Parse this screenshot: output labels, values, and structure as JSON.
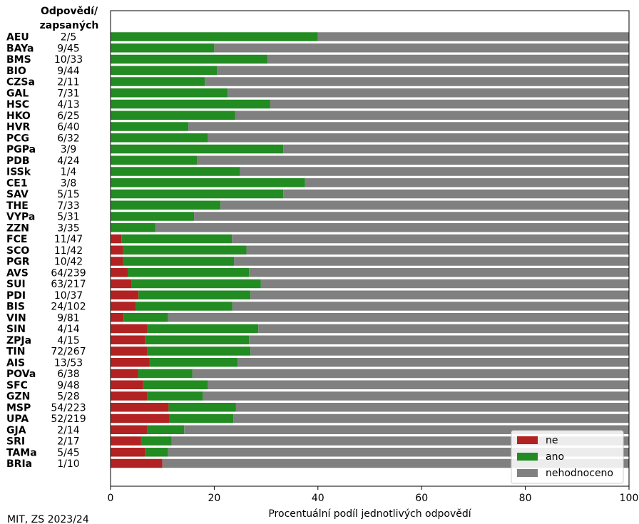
{
  "header": {
    "line1": "Odpovědí/",
    "line2": "zapsaných"
  },
  "footer": "MIT, ZS 2023/24",
  "colors": {
    "ne": "#b22222",
    "ano": "#228b22",
    "nehodnoceno": "#808080"
  },
  "chart_data": {
    "type": "bar",
    "orientation": "horizontal",
    "stacked": true,
    "xlabel": "Procentuální podíl jednotlivých odpovědí",
    "xlim": [
      0,
      100
    ],
    "xticks": [
      0,
      20,
      40,
      60,
      80,
      100
    ],
    "legend": {
      "placement": "bottom-right",
      "entries": [
        "ne",
        "ano",
        "nehodnoceno"
      ]
    },
    "rows": [
      {
        "code": "AEU",
        "ratio": "2/5",
        "ne": 0,
        "ano": 40
      },
      {
        "code": "BAYa",
        "ratio": "9/45",
        "ne": 0,
        "ano": 20
      },
      {
        "code": "BMS",
        "ratio": "10/33",
        "ne": 0,
        "ano": 30.3
      },
      {
        "code": "BIO",
        "ratio": "9/44",
        "ne": 0,
        "ano": 20.5
      },
      {
        "code": "CZSa",
        "ratio": "2/11",
        "ne": 0,
        "ano": 18.2
      },
      {
        "code": "GAL",
        "ratio": "7/31",
        "ne": 0,
        "ano": 22.6
      },
      {
        "code": "HSC",
        "ratio": "4/13",
        "ne": 0,
        "ano": 30.8
      },
      {
        "code": "HKO",
        "ratio": "6/25",
        "ne": 0,
        "ano": 24
      },
      {
        "code": "HVR",
        "ratio": "6/40",
        "ne": 0,
        "ano": 15
      },
      {
        "code": "PCG",
        "ratio": "6/32",
        "ne": 0,
        "ano": 18.8
      },
      {
        "code": "PGPa",
        "ratio": "3/9",
        "ne": 0,
        "ano": 33.3
      },
      {
        "code": "PDB",
        "ratio": "4/24",
        "ne": 0,
        "ano": 16.7
      },
      {
        "code": "ISSk",
        "ratio": "1/4",
        "ne": 0,
        "ano": 25
      },
      {
        "code": "CE1",
        "ratio": "3/8",
        "ne": 0,
        "ano": 37.5
      },
      {
        "code": "SAV",
        "ratio": "5/15",
        "ne": 0,
        "ano": 33.3
      },
      {
        "code": "THE",
        "ratio": "7/33",
        "ne": 0,
        "ano": 21.2
      },
      {
        "code": "VYPa",
        "ratio": "5/31",
        "ne": 0,
        "ano": 16.1
      },
      {
        "code": "ZZN",
        "ratio": "3/35",
        "ne": 0,
        "ano": 8.6
      },
      {
        "code": "FCE",
        "ratio": "11/47",
        "ne": 2.1,
        "ano": 21.3
      },
      {
        "code": "SCO",
        "ratio": "11/42",
        "ne": 2.4,
        "ano": 23.8
      },
      {
        "code": "PGR",
        "ratio": "10/42",
        "ne": 2.4,
        "ano": 21.4
      },
      {
        "code": "AVS",
        "ratio": "64/239",
        "ne": 3.3,
        "ano": 23.4
      },
      {
        "code": "SUI",
        "ratio": "63/217",
        "ne": 4.1,
        "ano": 24.9
      },
      {
        "code": "PDI",
        "ratio": "10/37",
        "ne": 5.4,
        "ano": 21.6
      },
      {
        "code": "BIS",
        "ratio": "24/102",
        "ne": 4.9,
        "ano": 18.6
      },
      {
        "code": "VIN",
        "ratio": "9/81",
        "ne": 2.5,
        "ano": 8.6
      },
      {
        "code": "SIN",
        "ratio": "4/14",
        "ne": 7.1,
        "ano": 21.4
      },
      {
        "code": "ZPJa",
        "ratio": "4/15",
        "ne": 6.7,
        "ano": 20
      },
      {
        "code": "TIN",
        "ratio": "72/267",
        "ne": 7.1,
        "ano": 19.9
      },
      {
        "code": "AIS",
        "ratio": "13/53",
        "ne": 7.5,
        "ano": 17
      },
      {
        "code": "POVa",
        "ratio": "6/38",
        "ne": 5.3,
        "ano": 10.5
      },
      {
        "code": "SFC",
        "ratio": "9/48",
        "ne": 6.3,
        "ano": 12.5
      },
      {
        "code": "GZN",
        "ratio": "5/28",
        "ne": 7.1,
        "ano": 10.7
      },
      {
        "code": "MSP",
        "ratio": "54/223",
        "ne": 11.2,
        "ano": 13
      },
      {
        "code": "UPA",
        "ratio": "52/219",
        "ne": 11.4,
        "ano": 12.3
      },
      {
        "code": "GJA",
        "ratio": "2/14",
        "ne": 7.1,
        "ano": 7.1
      },
      {
        "code": "SRI",
        "ratio": "2/17",
        "ne": 5.9,
        "ano": 5.9
      },
      {
        "code": "TAMa",
        "ratio": "5/45",
        "ne": 6.7,
        "ano": 4.4
      },
      {
        "code": "BRIa",
        "ratio": "1/10",
        "ne": 10,
        "ano": 0
      }
    ]
  }
}
